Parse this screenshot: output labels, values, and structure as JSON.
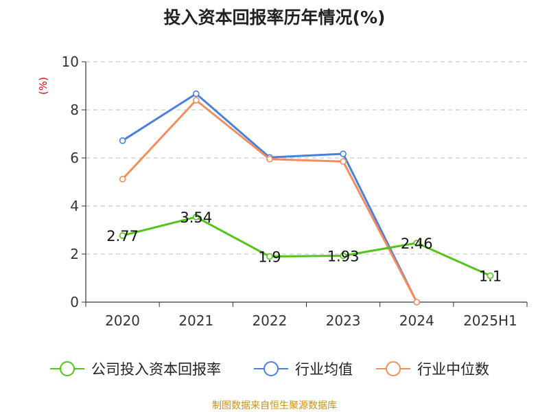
{
  "title": "投入资本回报率历年情况(%)",
  "y_unit": "(%)",
  "source": "制图数据来自恒生聚源数据库",
  "chart_data": {
    "type": "line",
    "categories": [
      "2020",
      "2021",
      "2022",
      "2023",
      "2024",
      "2025H1"
    ],
    "ylim": [
      0,
      10
    ],
    "yticks": [
      0,
      2,
      4,
      6,
      8,
      10
    ],
    "grid": true,
    "legend_position": "bottom",
    "series": [
      {
        "name": "公司投入资本回报率",
        "color": "#52c41a",
        "values": [
          2.77,
          3.54,
          1.9,
          1.93,
          2.46,
          1.1
        ],
        "labels": [
          "2.77",
          "3.54",
          "1.9",
          "1.93",
          "2.46",
          "1.1"
        ]
      },
      {
        "name": "行业均值",
        "color": "#4a7fe0",
        "values": [
          6.72,
          8.67,
          6.02,
          6.17,
          0.0,
          null
        ]
      },
      {
        "name": "行业中位数",
        "color": "#f58d5a",
        "values": [
          5.12,
          8.4,
          5.95,
          5.85,
          0.0,
          null
        ]
      }
    ]
  }
}
